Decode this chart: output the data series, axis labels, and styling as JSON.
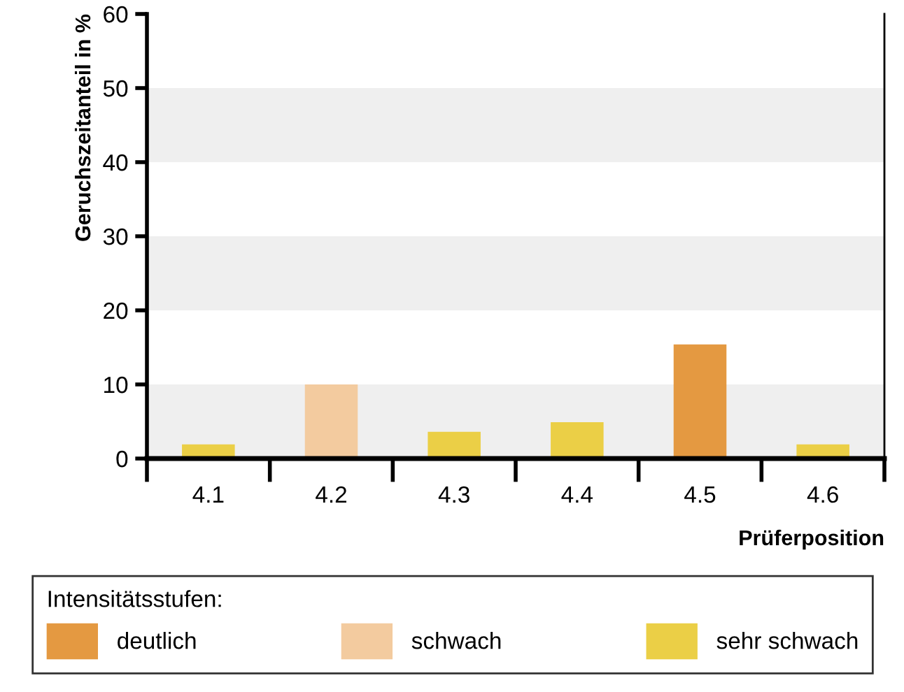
{
  "chart_data": {
    "type": "bar",
    "xlabel": "Prüferposition",
    "ylabel": "Geruchszeitanteil in %",
    "categories": [
      "4.1",
      "4.2",
      "4.3",
      "4.4",
      "4.5",
      "4.6"
    ],
    "series": [
      {
        "name": "deutlich",
        "color": "#e49941",
        "values": [
          null,
          null,
          null,
          null,
          15.4,
          null
        ]
      },
      {
        "name": "schwach",
        "color": "#f3cb9f",
        "values": [
          null,
          10,
          null,
          null,
          null,
          null
        ]
      },
      {
        "name": "sehr schwach",
        "color": "#ebcf46",
        "values": [
          1.9,
          null,
          3.6,
          4.9,
          null,
          1.9
        ]
      }
    ],
    "legend_title": "Intensitätsstufen:",
    "legend": "bottom",
    "ylim": [
      0,
      60
    ],
    "yticks": [
      0,
      10,
      20,
      30,
      40,
      50,
      60
    ],
    "bands": [
      {
        "axis": "y",
        "from": 0,
        "to": 10,
        "color": "#efefef"
      },
      {
        "axis": "y",
        "from": 20,
        "to": 30,
        "color": "#efefef"
      },
      {
        "axis": "y",
        "from": 40,
        "to": 50,
        "color": "#efefef"
      }
    ]
  }
}
